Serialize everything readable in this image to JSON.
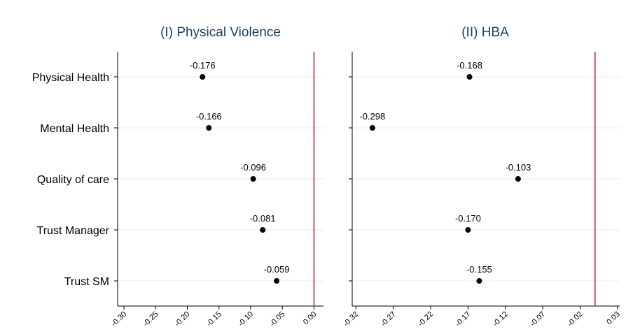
{
  "chart_data": [
    {
      "type": "scatter",
      "title": "(I) Physical Violence",
      "categories": [
        "Physical Health",
        "Mental Health",
        "Quality of care",
        "Trust Manager",
        "Trust SM"
      ],
      "values": [
        -0.176,
        -0.166,
        -0.096,
        -0.081,
        -0.059
      ],
      "data_labels": [
        "-0.176",
        "-0.166",
        "-0.096",
        "-0.081",
        "-0.059"
      ],
      "xticks": [
        -0.3,
        -0.25,
        -0.2,
        -0.15,
        -0.1,
        -0.05,
        0.0
      ],
      "xtick_labels": [
        "-0.30",
        "-0.25",
        "-0.20",
        "-0.15",
        "-0.10",
        "-0.05",
        "0.00"
      ],
      "xlim": [
        -0.31,
        0.015
      ],
      "reference_line": 0.0,
      "grid": true
    },
    {
      "type": "scatter",
      "title": "(II) HBA",
      "categories": [
        "Physical Health",
        "Mental Health",
        "Quality of care",
        "Trust Manager",
        "Trust SM"
      ],
      "values": [
        -0.168,
        -0.298,
        -0.103,
        -0.17,
        -0.155
      ],
      "data_labels": [
        "-0.168",
        "-0.298",
        "-0.103",
        "-0.170",
        "-0.155"
      ],
      "xticks": [
        -0.32,
        -0.27,
        -0.22,
        -0.17,
        -0.12,
        -0.07,
        -0.02,
        0.03
      ],
      "xtick_labels": [
        "-0.32",
        "-0.27",
        "-0.22",
        "-0.17",
        "-0.12",
        "-0.07",
        "-0.02",
        "0.03"
      ],
      "xlim": [
        -0.325,
        0.033
      ],
      "reference_line": 0.0,
      "grid": true
    }
  ],
  "colors": {
    "title": "#1f3d66",
    "reference_line": "#c0183c",
    "grid": "#e4eef2",
    "marker": "#000000",
    "axis": "#000000"
  }
}
